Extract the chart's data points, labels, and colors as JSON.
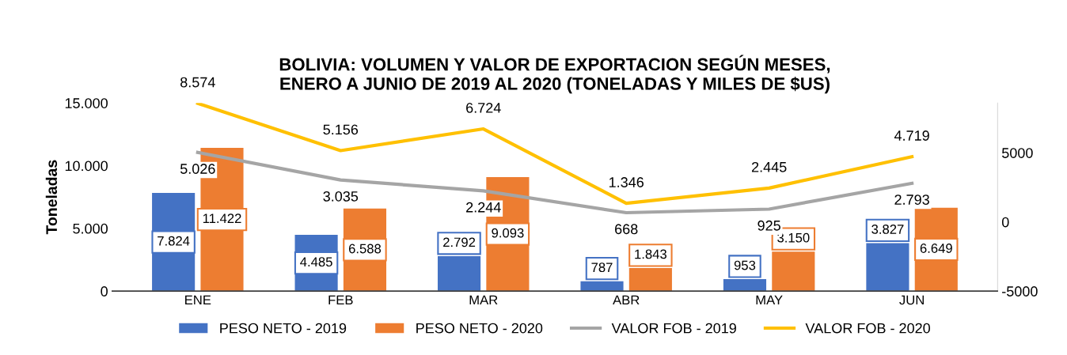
{
  "chart_data": {
    "type": "bar",
    "title": "BOLIVIA: VOLUMEN Y VALOR DE EXPORTACION SEGÚN MESES,\nENERO A JUNIO DE 2019 AL 2020 (TONELADAS Y MILES DE $US)",
    "ylabel": "Toneladas",
    "categories": [
      "ENE",
      "FEB",
      "MAR",
      "ABR",
      "MAY",
      "JUN"
    ],
    "series": [
      {
        "name": "PESO NETO - 2019",
        "color": "#4472c4",
        "values": [
          7824,
          4485,
          2792,
          787,
          953,
          3827
        ],
        "value_labels": [
          "7.824",
          "4.485",
          "2.792",
          "787",
          "953",
          "3.827"
        ]
      },
      {
        "name": "PESO NETO - 2020",
        "color": "#ed7d31",
        "values": [
          11422,
          6588,
          9093,
          1843,
          3150,
          6649
        ],
        "value_labels": [
          "11.422",
          "6.588",
          "9.093",
          "1.843",
          "3.150",
          "6.649"
        ]
      },
      {
        "name": "VALOR FOB - 2019",
        "type": "line",
        "axis": "y2",
        "color": "#a5a5a5",
        "values": [
          5026,
          3035,
          2244,
          668,
          925,
          2793
        ],
        "value_labels": [
          "5.026",
          "3.035",
          "2.244",
          "668",
          "925",
          "2.793"
        ]
      },
      {
        "name": "VALOR FOB - 2020",
        "type": "line",
        "axis": "y2",
        "color": "#ffc000",
        "values": [
          8574,
          5156,
          6724,
          1346,
          2445,
          4719
        ],
        "value_labels": [
          "8.574",
          "5.156",
          "6.724",
          "1.346",
          "2.445",
          "4.719"
        ]
      }
    ],
    "ylim": [
      0,
      15000
    ],
    "yticks": [
      {
        "value": 0,
        "label": "0"
      },
      {
        "value": 5000,
        "label": "5.000"
      },
      {
        "value": 10000,
        "label": "10.000"
      },
      {
        "value": 15000,
        "label": "15.000"
      }
    ],
    "y2lim": [
      -5000,
      8600
    ],
    "y2ticks": [
      -5000,
      0,
      5000
    ],
    "grid": false,
    "legend": "bottom",
    "marker": "none",
    "line_style": "solid"
  }
}
